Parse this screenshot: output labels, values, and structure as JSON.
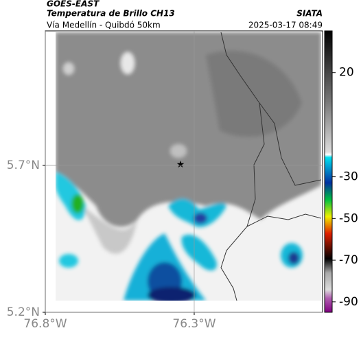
{
  "header": {
    "title": "GOES-EAST",
    "subtitle": "Temperatura de Brillo CH13",
    "source": "SIATA",
    "route": "Vía Medellín - Quibdó 50km",
    "datetime": "2025-03-17 08:49"
  },
  "map": {
    "xlim": [
      -76.8,
      -75.869
    ],
    "ylim": [
      5.2,
      6.158
    ],
    "xticks": [
      {
        "value": -76.8,
        "label": "76.8°W"
      },
      {
        "value": -76.3,
        "label": "76.3°W"
      }
    ],
    "yticks": [
      {
        "value": 5.7,
        "label": "5.7°N"
      },
      {
        "value": 5.2,
        "label": "5.2°N"
      }
    ],
    "grid": true
  },
  "colorbar": {
    "lim": [
      -95,
      40
    ],
    "ticks": [
      20,
      -30,
      -50,
      -70,
      -90
    ]
  }
}
